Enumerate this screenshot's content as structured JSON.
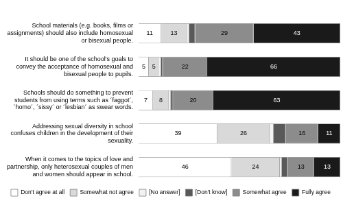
{
  "chart_data": {
    "type": "bar",
    "orientation": "horizontal",
    "stacked": true,
    "grid": false,
    "tick_labels": "y",
    "legend": "bottom",
    "xlim": [
      0,
      100
    ],
    "categories": [
      "School materials (e.g. books, films or assignments) should also include homosexual or bisexual people.",
      "It should be one of the school's goals to convey the acceptance of homosexual and bisexual people to pupils.",
      "Schools should do something to prevent students from using terms such as ´faggot´, ´homo´, ´sissy´ or ´lesbian´ as swear words.",
      "Addressing sexual diversity in school confuses children in the development of their sexuality.",
      "When it comes to the topics of love and partnership, only heterosexual couples of men and women should appear in school."
    ],
    "series": [
      {
        "name": "Don't agree at all",
        "color": "#ffffff",
        "values": [
          11,
          5,
          7,
          39,
          46
        ],
        "data_labels": true
      },
      {
        "name": "Somewhat not agree",
        "color": "#d9d9d9",
        "values": [
          13,
          5,
          8,
          26,
          24
        ],
        "data_labels": true
      },
      {
        "name": "[No answer]",
        "color": "#f2f2f2",
        "values": [
          1,
          1,
          1,
          2,
          1
        ],
        "data_labels": false
      },
      {
        "name": "[Don't know]",
        "color": "#595959",
        "values": [
          3,
          1,
          1,
          6,
          3
        ],
        "data_labels": false
      },
      {
        "name": "Somewhat agree",
        "color": "#8c8c8c",
        "values": [
          29,
          22,
          20,
          16,
          13
        ],
        "data_labels": true
      },
      {
        "name": "Fully agree",
        "color": "#1a1a1a",
        "values": [
          43,
          66,
          63,
          11,
          13
        ],
        "data_labels": true
      }
    ]
  }
}
